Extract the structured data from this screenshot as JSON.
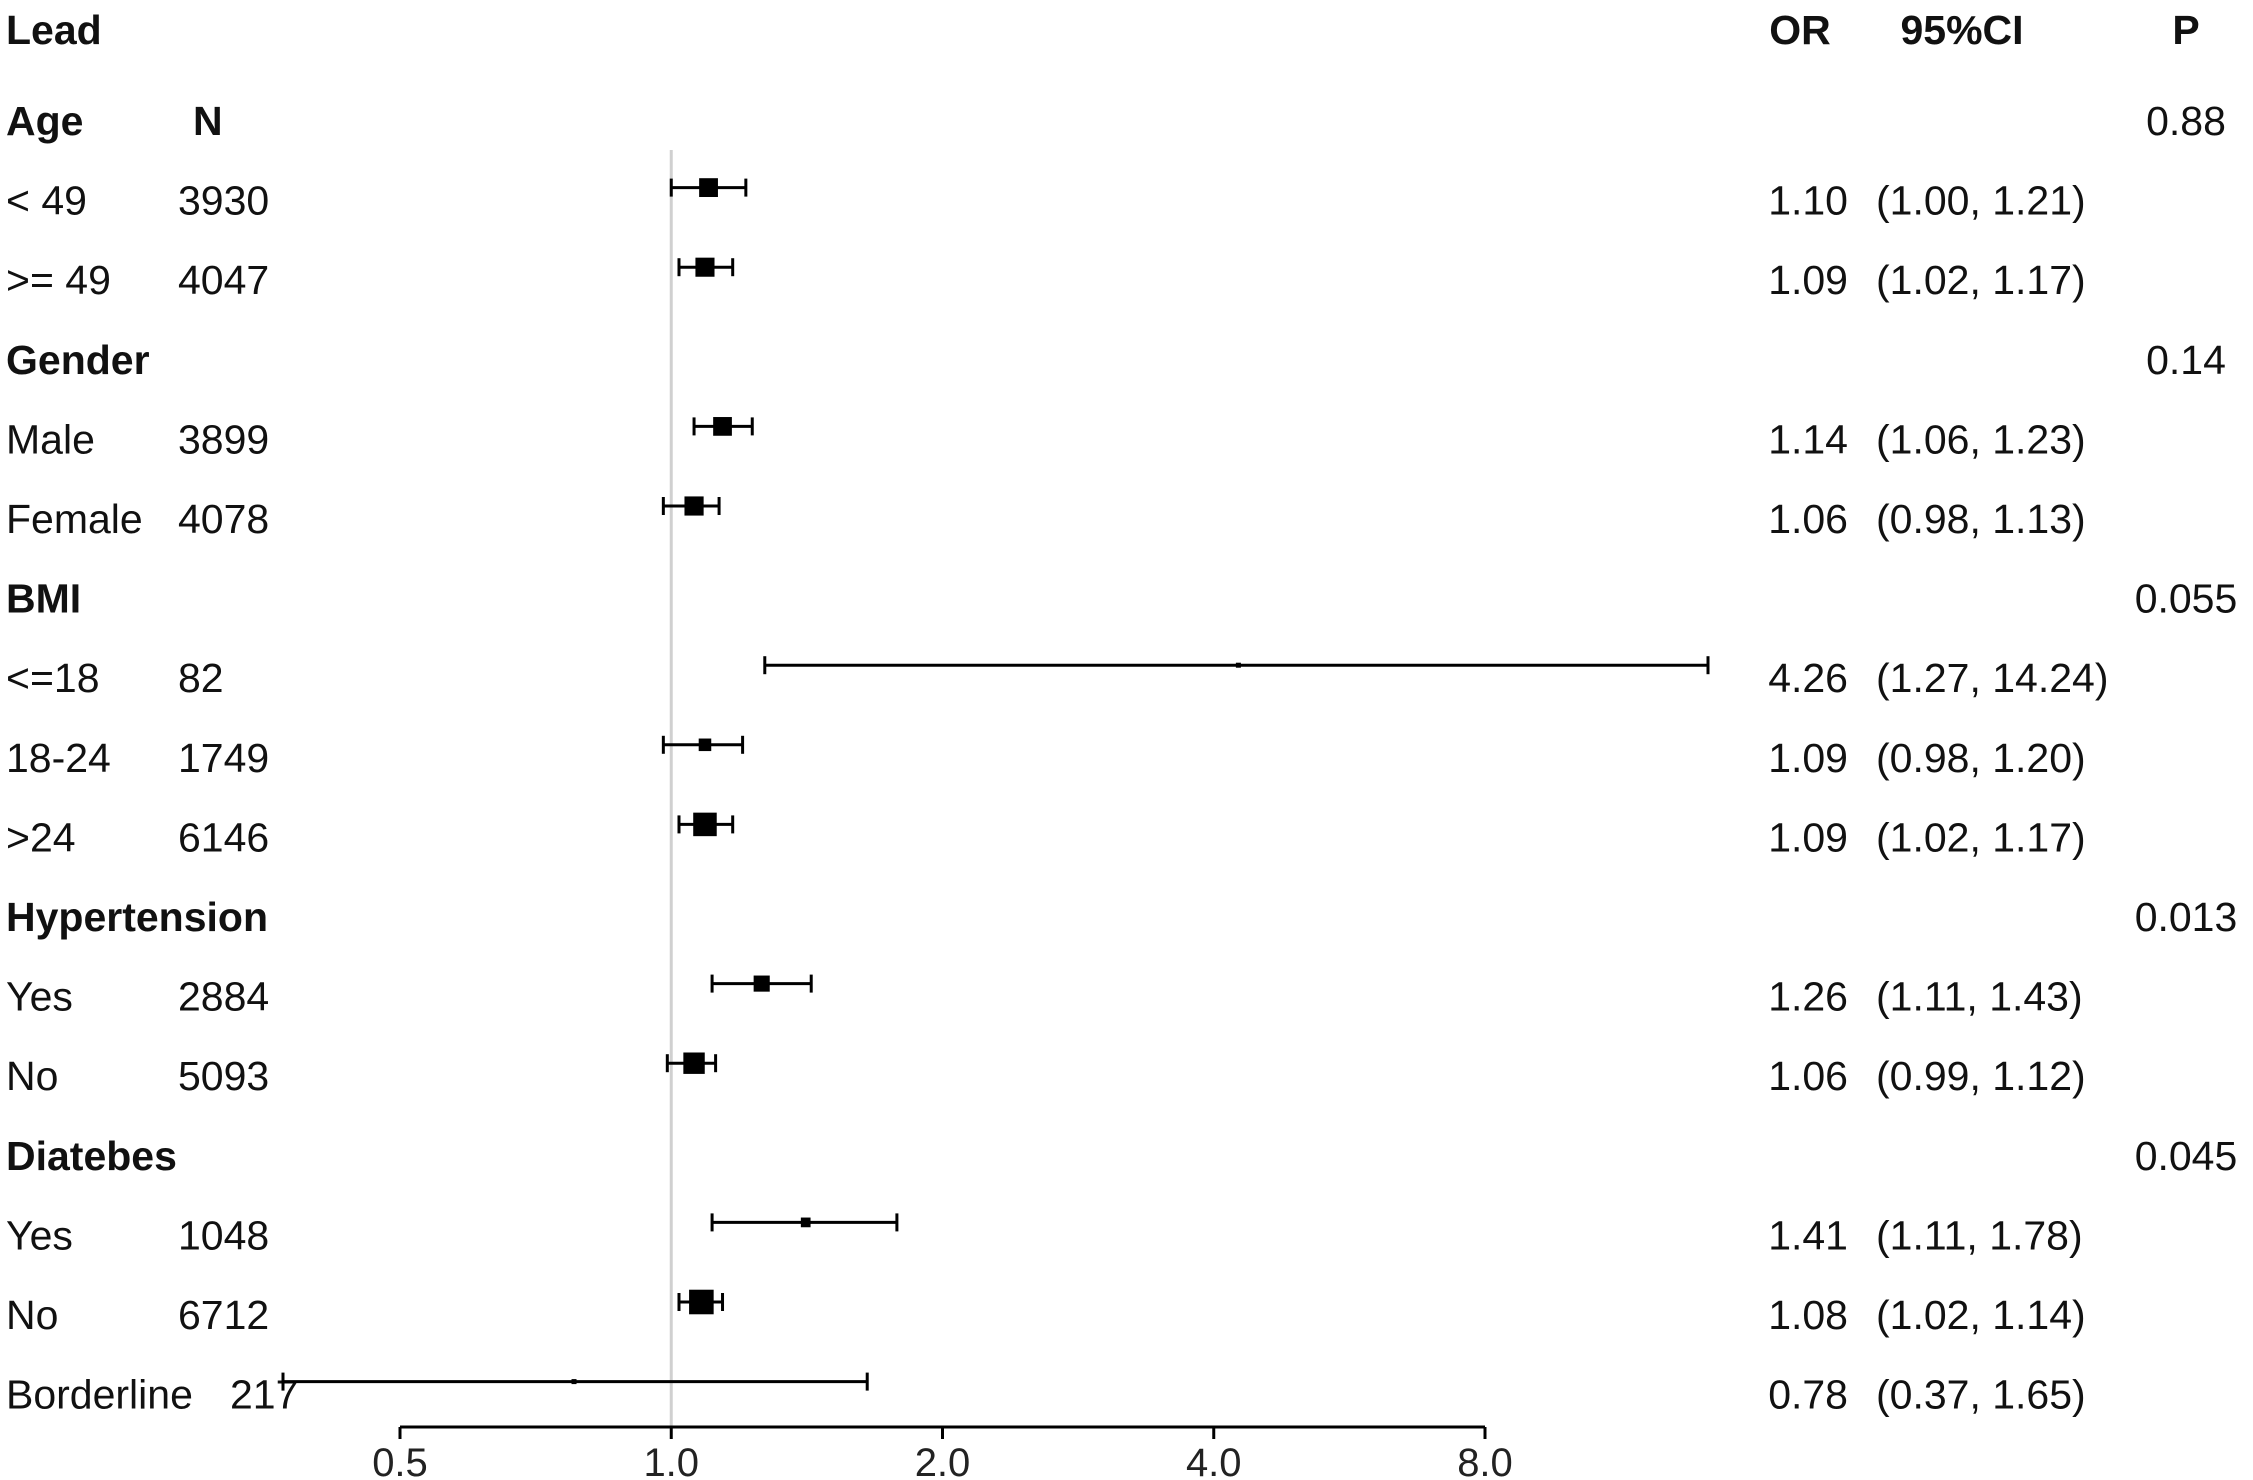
{
  "chart_data": {
    "type": "forest",
    "x_scale": "log2",
    "xlim": [
      0.5,
      8.0
    ],
    "reference_line": 1.0,
    "x_ticks": [
      "0.5",
      "1.0",
      "2.0",
      "4.0",
      "8.0"
    ],
    "x_tick_values": [
      0.5,
      1.0,
      2.0,
      4.0,
      8.0
    ],
    "headers": {
      "subgroup": "Lead",
      "or": "OR",
      "ci": "95%CI",
      "p": "P"
    },
    "rows": [
      {
        "kind": "group",
        "label": "Age",
        "n": "N",
        "p": "0.88"
      },
      {
        "kind": "item",
        "label": "< 49",
        "n": "3930",
        "or": 1.1,
        "lo": 1.0,
        "hi": 1.21,
        "or_text": "1.10",
        "ci_text": "(1.00, 1.21)"
      },
      {
        "kind": "item",
        "label": ">= 49",
        "n": "4047",
        "or": 1.09,
        "lo": 1.02,
        "hi": 1.17,
        "or_text": "1.09",
        "ci_text": "(1.02, 1.17)"
      },
      {
        "kind": "group",
        "label": "Gender",
        "n": "",
        "p": "0.14"
      },
      {
        "kind": "item",
        "label": "Male",
        "n": "3899",
        "or": 1.14,
        "lo": 1.06,
        "hi": 1.23,
        "or_text": "1.14",
        "ci_text": "(1.06, 1.23)"
      },
      {
        "kind": "item",
        "label": "Female",
        "n": "4078",
        "or": 1.06,
        "lo": 0.98,
        "hi": 1.13,
        "or_text": "1.06",
        "ci_text": "(0.98, 1.13)"
      },
      {
        "kind": "group",
        "label": "BMI",
        "n": "",
        "p": "0.055"
      },
      {
        "kind": "item",
        "label": "<=18",
        "n": "82",
        "or": 4.26,
        "lo": 1.27,
        "hi": 14.24,
        "or_text": "4.26",
        "ci_text": "(1.27, 14.24)"
      },
      {
        "kind": "item",
        "label": "18-24",
        "n": "1749",
        "or": 1.09,
        "lo": 0.98,
        "hi": 1.2,
        "or_text": "1.09",
        "ci_text": "(0.98, 1.20)"
      },
      {
        "kind": "item",
        "label": ">24",
        "n": "6146",
        "or": 1.09,
        "lo": 1.02,
        "hi": 1.17,
        "or_text": "1.09",
        "ci_text": "(1.02, 1.17)"
      },
      {
        "kind": "group",
        "label": "Hypertension",
        "n": "",
        "p": "0.013"
      },
      {
        "kind": "item",
        "label": "Yes",
        "n": "2884",
        "or": 1.26,
        "lo": 1.11,
        "hi": 1.43,
        "or_text": "1.26",
        "ci_text": "(1.11, 1.43)"
      },
      {
        "kind": "item",
        "label": "No",
        "n": "5093",
        "or": 1.06,
        "lo": 0.99,
        "hi": 1.12,
        "or_text": "1.06",
        "ci_text": "(0.99, 1.12)"
      },
      {
        "kind": "group",
        "label": "Diatebes",
        "n": "",
        "p": "0.045"
      },
      {
        "kind": "item",
        "label": "Yes",
        "n": "1048",
        "or": 1.41,
        "lo": 1.11,
        "hi": 1.78,
        "or_text": "1.41",
        "ci_text": "(1.11, 1.78)"
      },
      {
        "kind": "item",
        "label": "No",
        "n": "6712",
        "or": 1.08,
        "lo": 1.02,
        "hi": 1.14,
        "or_text": "1.08",
        "ci_text": "(1.02, 1.14)"
      },
      {
        "kind": "item",
        "label": "Borderline",
        "n": "217",
        "or": 0.78,
        "lo": 0.37,
        "hi": 1.65,
        "or_text": "0.78",
        "ci_text": "(0.37, 1.65)"
      }
    ],
    "colors": {
      "marks": "#000000",
      "reference_line": "#d0d0d0",
      "text": "#111111"
    }
  }
}
